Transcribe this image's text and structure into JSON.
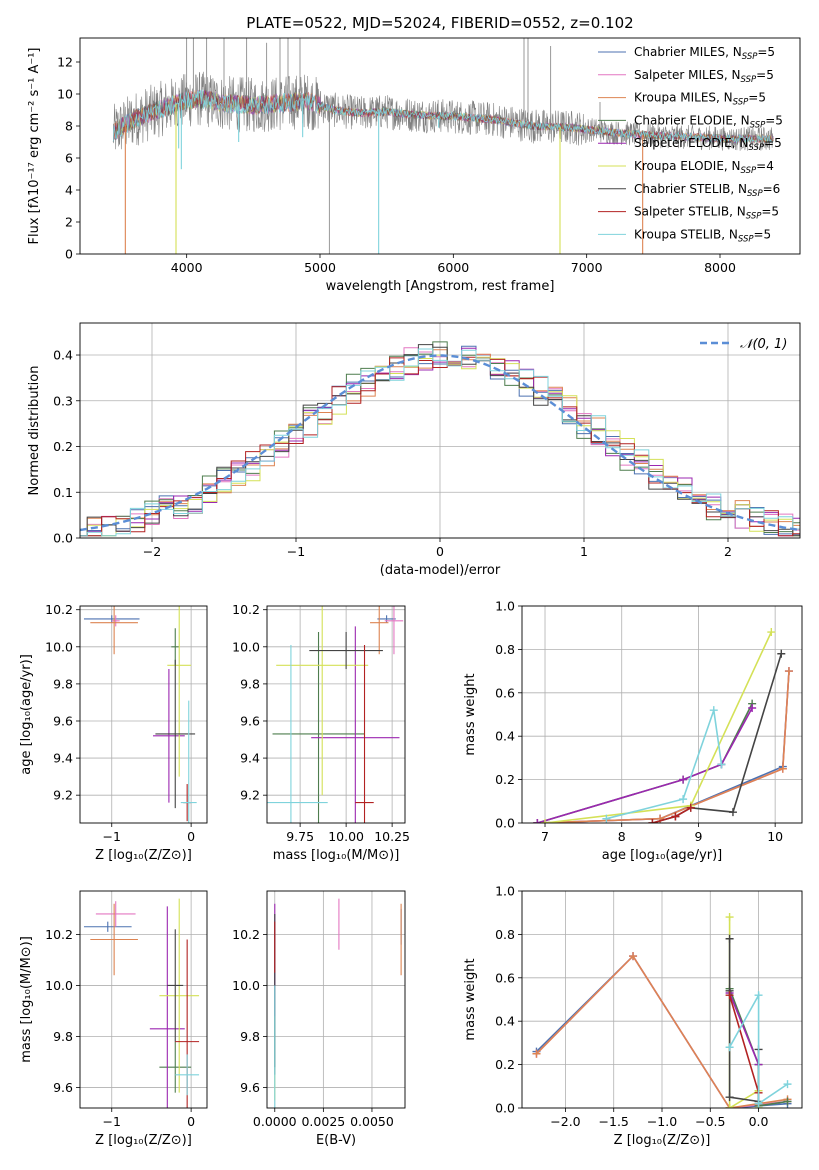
{
  "figure": {
    "title": "PLATE=0522, MJD=52024, FIBERID=0552, z=0.102"
  },
  "colors": {
    "chabrier_miles": "#4c72b0",
    "salpeter_miles": "#e377c2",
    "kroupa_miles": "#dd8452",
    "chabrier_elodie": "#4e7d4e",
    "salpeter_elodie": "#9b27b0",
    "kroupa_elodie": "#d4e157",
    "chabrier_stelib": "#444444",
    "salpeter_stelib": "#b22222",
    "kroupa_stelib": "#7fd3dc",
    "data": "#808080",
    "normal": "#5b8ed6"
  },
  "chart_data": [
    {
      "id": "spectrum",
      "type": "line",
      "xlabel": "wavelength [Angstrom, rest frame]",
      "ylabel": "Flux [fλ10⁻¹⁷ erg cm⁻² s⁻¹ A⁻¹]",
      "xlim": [
        3200,
        8600
      ],
      "ylim": [
        0,
        13.5
      ],
      "xticks": [
        4000,
        5000,
        6000,
        7000,
        8000
      ],
      "yticks": [
        0,
        2,
        4,
        6,
        8,
        10,
        12
      ],
      "legend_position": "top-right",
      "legend": [
        {
          "label": "Chabrier MILES, N",
          "sub": "SSP",
          "suffix": "=5",
          "color_key": "chabrier_miles"
        },
        {
          "label": "Salpeter MILES, N",
          "sub": "SSP",
          "suffix": "=5",
          "color_key": "salpeter_miles"
        },
        {
          "label": "Kroupa MILES, N",
          "sub": "SSP",
          "suffix": "=5",
          "color_key": "kroupa_miles"
        },
        {
          "label": "Chabrier ELODIE, N",
          "sub": "SSP",
          "suffix": "=5",
          "color_key": "chabrier_elodie"
        },
        {
          "label": "Salpeter ELODIE, N",
          "sub": "SSP",
          "suffix": "=5",
          "color_key": "salpeter_elodie"
        },
        {
          "label": "Kroupa ELODIE, N",
          "sub": "SSP",
          "suffix": "=4",
          "color_key": "kroupa_elodie"
        },
        {
          "label": "Chabrier STELIB, N",
          "sub": "SSP",
          "suffix": "=6",
          "color_key": "chabrier_stelib"
        },
        {
          "label": "Salpeter STELIB, N",
          "sub": "SSP",
          "suffix": "=5",
          "color_key": "salpeter_stelib"
        },
        {
          "label": "Kroupa STELIB, N",
          "sub": "SSP",
          "suffix": "=5",
          "color_key": "kroupa_stelib"
        }
      ],
      "model_continuum": [
        [
          3450,
          7.6
        ],
        [
          3600,
          8.4
        ],
        [
          3750,
          8.9
        ],
        [
          3850,
          9.2
        ],
        [
          4000,
          9.6
        ],
        [
          4100,
          9.7
        ],
        [
          4300,
          9.4
        ],
        [
          4500,
          9.3
        ],
        [
          4700,
          9.4
        ],
        [
          4900,
          9.6
        ],
        [
          5100,
          9.0
        ],
        [
          5300,
          8.8
        ],
        [
          5500,
          8.9
        ],
        [
          5700,
          8.7
        ],
        [
          6000,
          8.6
        ],
        [
          6300,
          8.4
        ],
        [
          6600,
          8.0
        ],
        [
          6900,
          7.9
        ],
        [
          7200,
          7.6
        ],
        [
          7500,
          7.4
        ],
        [
          7800,
          7.3
        ],
        [
          8100,
          7.2
        ],
        [
          8400,
          7.2
        ]
      ],
      "data_noise_amplitude": 1.1,
      "data_spikes": [
        {
          "x": 4000,
          "y": 13.5
        },
        {
          "x": 4050,
          "y": 13.5
        },
        {
          "x": 4150,
          "y": 13.5
        },
        {
          "x": 4280,
          "y": 13.5
        },
        {
          "x": 4450,
          "y": 13.5
        },
        {
          "x": 4600,
          "y": 13.2
        },
        {
          "x": 4700,
          "y": 13.5
        },
        {
          "x": 4760,
          "y": 13.5
        },
        {
          "x": 4850,
          "y": 13.5
        },
        {
          "x": 5070,
          "y": 0
        },
        {
          "x": 6530,
          "y": 13.5
        },
        {
          "x": 6560,
          "y": 13.5
        },
        {
          "x": 6730,
          "y": 13.0
        },
        {
          "x": 7100,
          "y": 9.5
        }
      ],
      "model_drops": [
        {
          "x": 3540,
          "y": 0,
          "color_key": "kroupa_miles"
        },
        {
          "x": 3920,
          "y": 0,
          "color_key": "kroupa_elodie"
        },
        {
          "x": 3960,
          "y": 5.3,
          "color_key": "kroupa_stelib"
        },
        {
          "x": 5440,
          "y": 0,
          "color_key": "kroupa_stelib"
        },
        {
          "x": 6800,
          "y": 0,
          "color_key": "kroupa_elodie"
        },
        {
          "x": 7420,
          "y": 0,
          "color_key": "kroupa_miles"
        },
        {
          "x": 4390,
          "y": 7.0,
          "color_key": "kroupa_stelib"
        },
        {
          "x": 4870,
          "y": 7.3,
          "color_key": "kroupa_stelib"
        },
        {
          "x": 5890,
          "y": 7.9,
          "color_key": "kroupa_stelib"
        },
        {
          "x": 3940,
          "y": 6.6,
          "color_key": "kroupa_stelib"
        }
      ]
    },
    {
      "id": "residuals",
      "type": "histogram",
      "xlabel": "(data-model)/error",
      "ylabel": "Normed distribution",
      "xlim": [
        -2.5,
        2.5
      ],
      "ylim": [
        0,
        0.47
      ],
      "xticks": [
        -2,
        -1,
        0,
        1,
        2
      ],
      "yticks": [
        0.0,
        0.1,
        0.2,
        0.3,
        0.4
      ],
      "bin_width": 0.1,
      "legend_position": "top-right",
      "legend_label": "𝒩(0, 1)",
      "normal_curve": {
        "mean": 0,
        "sigma": 1
      },
      "scatter_amplitude": 0.03
    },
    {
      "id": "Z_vs_age",
      "type": "errorbar",
      "xlabel": "Z [log₁₀(Z/Z⊙)]",
      "ylabel": "age  [log₁₀(age/yr)]",
      "xlim": [
        -1.4,
        0.2
      ],
      "ylim": [
        9.05,
        10.22
      ],
      "xticks": [
        -1,
        0
      ],
      "yticks": [
        9.2,
        9.4,
        9.6,
        9.8,
        10.0,
        10.2
      ],
      "points": [
        {
          "color_key": "chabrier_miles",
          "x": -1.0,
          "xerr": 0.35,
          "y": 10.15,
          "yerr": 0.02
        },
        {
          "color_key": "salpeter_miles",
          "x": -0.95,
          "xerr": 0.05,
          "y": 10.14,
          "yerr": 0.03
        },
        {
          "color_key": "kroupa_miles",
          "x": -0.97,
          "xerr": 0.3,
          "y": 10.13,
          "yerr": 0.17
        },
        {
          "color_key": "chabrier_elodie",
          "x": -0.2,
          "xerr": 0.05,
          "y": 10.0,
          "yerr": 0.1
        },
        {
          "color_key": "salpeter_elodie",
          "x": -0.28,
          "xerr": 0.2,
          "y": 9.52,
          "yerr": 0.36
        },
        {
          "color_key": "kroupa_elodie",
          "x": -0.15,
          "xerr": 0.15,
          "y": 9.9,
          "yerr": 0.6
        },
        {
          "color_key": "chabrier_stelib",
          "x": -0.2,
          "xerr": 0.25,
          "y": 9.53,
          "yerr": 0.4
        },
        {
          "color_key": "salpeter_stelib",
          "x": -0.05,
          "xerr": 0.05,
          "y": 9.16,
          "yerr": 0.1
        },
        {
          "color_key": "kroupa_stelib",
          "x": -0.03,
          "xerr": 0.1,
          "y": 9.16,
          "yerr": 0.55
        }
      ]
    },
    {
      "id": "mass_vs_age",
      "type": "errorbar",
      "xlabel": "mass [log₁₀(M/M⊙)]",
      "ylabel": "",
      "xlim": [
        9.57,
        10.32
      ],
      "ylim": [
        9.05,
        10.22
      ],
      "xticks": [
        9.75,
        10.0,
        10.25
      ],
      "xticklabels": [
        "9.75",
        "10.00",
        "10.25"
      ],
      "yticks": [
        9.2,
        9.4,
        9.6,
        9.8,
        10.0,
        10.2
      ],
      "points": [
        {
          "color_key": "chabrier_miles",
          "x": 10.22,
          "xerr": 0.05,
          "y": 10.15,
          "yerr": 0.02
        },
        {
          "color_key": "salpeter_miles",
          "x": 10.26,
          "xerr": 0.05,
          "y": 10.14,
          "yerr": 0.18
        },
        {
          "color_key": "kroupa_miles",
          "x": 10.18,
          "xerr": 0.05,
          "y": 10.13,
          "yerr": 0.17
        },
        {
          "color_key": "chabrier_elodie",
          "x": 9.85,
          "xerr": 0.25,
          "y": 9.53,
          "yerr": 0.55
        },
        {
          "color_key": "salpeter_elodie",
          "x": 10.05,
          "xerr": 0.24,
          "y": 9.51,
          "yerr": 0.6
        },
        {
          "color_key": "kroupa_elodie",
          "x": 9.87,
          "xerr": 0.25,
          "y": 9.9,
          "yerr": 0.7
        },
        {
          "color_key": "chabrier_stelib",
          "x": 10.0,
          "xerr": 0.2,
          "y": 9.98,
          "yerr": 0.1
        },
        {
          "color_key": "salpeter_stelib",
          "x": 10.1,
          "xerr": 0.05,
          "y": 9.16,
          "yerr": 0.85
        },
        {
          "color_key": "kroupa_stelib",
          "x": 9.7,
          "xerr": 0.2,
          "y": 9.16,
          "yerr": 0.85
        }
      ]
    },
    {
      "id": "age_mass_weight",
      "type": "line",
      "xlabel": "age  [log₁₀(age/yr)]",
      "ylabel": "mass weight",
      "xlim": [
        6.7,
        10.35
      ],
      "ylim": [
        0,
        1.0
      ],
      "xticks": [
        7,
        8,
        9,
        10
      ],
      "yticks": [
        0.0,
        0.2,
        0.4,
        0.6,
        0.8,
        1.0
      ],
      "series": [
        {
          "color_key": "chabrier_miles",
          "x": [
            6.9,
            8.5,
            10.1,
            10.18
          ],
          "y": [
            0.0,
            0.02,
            0.26,
            0.7
          ]
        },
        {
          "color_key": "salpeter_miles",
          "x": [
            6.9,
            8.5,
            10.1,
            10.18
          ],
          "y": [
            0.0,
            0.02,
            0.25,
            0.7
          ]
        },
        {
          "color_key": "kroupa_miles",
          "x": [
            6.9,
            8.5,
            10.1,
            10.18
          ],
          "y": [
            0.0,
            0.02,
            0.25,
            0.7
          ]
        },
        {
          "color_key": "chabrier_elodie",
          "x": [
            6.9,
            8.8,
            9.3,
            9.7
          ],
          "y": [
            0.0,
            0.2,
            0.27,
            0.55
          ]
        },
        {
          "color_key": "salpeter_elodie",
          "x": [
            6.9,
            8.8,
            9.3,
            9.7
          ],
          "y": [
            0.0,
            0.2,
            0.27,
            0.53
          ]
        },
        {
          "color_key": "kroupa_elodie",
          "x": [
            7.0,
            8.9,
            9.95
          ],
          "y": [
            0.0,
            0.08,
            0.88
          ]
        },
        {
          "color_key": "chabrier_stelib",
          "x": [
            8.4,
            8.7,
            8.9,
            9.45,
            10.08
          ],
          "y": [
            0.0,
            0.03,
            0.07,
            0.05,
            0.78
          ]
        },
        {
          "color_key": "salpeter_stelib",
          "x": [
            8.4,
            8.7,
            8.9
          ],
          "y": [
            0.0,
            0.03,
            0.07
          ]
        },
        {
          "color_key": "kroupa_stelib",
          "x": [
            7.8,
            8.8,
            9.2,
            9.3
          ],
          "y": [
            0.02,
            0.11,
            0.52,
            0.27
          ]
        }
      ]
    },
    {
      "id": "Z_vs_mass",
      "type": "errorbar",
      "xlabel": "Z [log₁₀(Z/Z⊙)]",
      "ylabel": "mass [log₁₀(M/M⊙)]",
      "xlim": [
        -1.4,
        0.2
      ],
      "ylim": [
        9.52,
        10.37
      ],
      "xticks": [
        -1,
        0
      ],
      "yticks": [
        9.6,
        9.8,
        10.0,
        10.2
      ],
      "points": [
        {
          "color_key": "chabrier_miles",
          "x": -1.05,
          "xerr": 0.3,
          "y": 10.23,
          "yerr": 0.02
        },
        {
          "color_key": "salpeter_miles",
          "x": -0.95,
          "xerr": 0.25,
          "y": 10.28,
          "yerr": 0.05
        },
        {
          "color_key": "kroupa_miles",
          "x": -0.97,
          "xerr": 0.3,
          "y": 10.18,
          "yerr": 0.14
        },
        {
          "color_key": "chabrier_elodie",
          "x": -0.2,
          "xerr": 0.2,
          "y": 9.68,
          "yerr": 0.1
        },
        {
          "color_key": "salpeter_elodie",
          "x": -0.3,
          "xerr": 0.22,
          "y": 9.83,
          "yerr": 0.48
        },
        {
          "color_key": "kroupa_elodie",
          "x": -0.15,
          "xerr": 0.25,
          "y": 9.96,
          "yerr": 0.38
        },
        {
          "color_key": "chabrier_stelib",
          "x": -0.2,
          "xerr": 0.1,
          "y": 10.0,
          "yerr": 0.22
        },
        {
          "color_key": "salpeter_stelib",
          "x": -0.05,
          "xerr": 0.15,
          "y": 9.78,
          "yerr": 0.4
        },
        {
          "color_key": "kroupa_stelib",
          "x": -0.05,
          "xerr": 0.15,
          "y": 9.65,
          "yerr": 0.08
        }
      ]
    },
    {
      "id": "ebv_vs_mass",
      "type": "errorbar",
      "xlabel": "E(B-V)",
      "ylabel": "",
      "xlim": [
        -0.0004,
        0.0067
      ],
      "ylim": [
        9.52,
        10.37
      ],
      "xticks": [
        0.0,
        0.0025,
        0.005
      ],
      "xticklabels": [
        "0.0000",
        "0.0025",
        "0.0050"
      ],
      "yticks": [
        9.6,
        9.8,
        10.0,
        10.2
      ],
      "points": [
        {
          "color_key": "chabrier_miles",
          "x": 0.0065,
          "xerr": 0,
          "y": 10.23,
          "yerr": 0.07
        },
        {
          "color_key": "salpeter_miles",
          "x": 0.0033,
          "xerr": 0,
          "y": 10.24,
          "yerr": 0.1
        },
        {
          "color_key": "kroupa_miles",
          "x": 0.0065,
          "xerr": 0,
          "y": 10.18,
          "yerr": 0.14
        },
        {
          "color_key": "chabrier_elodie",
          "x": 0.0,
          "xerr": 0,
          "y": 9.95,
          "yerr": 0.3
        },
        {
          "color_key": "salpeter_elodie",
          "x": 0.0,
          "xerr": 0,
          "y": 10.1,
          "yerr": 0.22
        },
        {
          "color_key": "kroupa_elodie",
          "x": 0.0,
          "xerr": 0,
          "y": 9.6,
          "yerr": 0.05
        },
        {
          "color_key": "chabrier_stelib",
          "x": 0.0,
          "xerr": 0,
          "y": 9.98,
          "yerr": 0.3
        },
        {
          "color_key": "salpeter_stelib",
          "x": 0.0,
          "xerr": 0,
          "y": 10.15,
          "yerr": 0.1
        },
        {
          "color_key": "kroupa_stelib",
          "x": 0.0,
          "xerr": 0,
          "y": 9.7,
          "yerr": 0.3
        }
      ]
    },
    {
      "id": "Z_mass_weight",
      "type": "line",
      "xlabel": "Z [log₁₀(Z/Z⊙)]",
      "ylabel": "mass weight",
      "xlim": [
        -2.45,
        0.45
      ],
      "ylim": [
        0,
        1.0
      ],
      "xticks": [
        -2.0,
        -1.5,
        -1.0,
        -0.5,
        0.0
      ],
      "xticklabels": [
        "−2.0",
        "−1.5",
        "−1.0",
        "−0.5",
        "0.0"
      ],
      "yticks": [
        0.0,
        0.2,
        0.4,
        0.6,
        0.8,
        1.0
      ],
      "series": [
        {
          "color_key": "chabrier_miles",
          "x": [
            -2.3,
            -1.3,
            -0.3,
            0.3
          ],
          "y": [
            0.26,
            0.7,
            0.0,
            0.02
          ]
        },
        {
          "color_key": "salpeter_miles",
          "x": [
            -2.3,
            -1.3,
            -0.3,
            0.3
          ],
          "y": [
            0.25,
            0.7,
            0.0,
            0.03
          ]
        },
        {
          "color_key": "kroupa_miles",
          "x": [
            -2.3,
            -1.3,
            -0.3,
            0.3
          ],
          "y": [
            0.25,
            0.7,
            0.0,
            0.04
          ]
        },
        {
          "color_key": "chabrier_elodie",
          "x": [
            -0.3,
            0.0,
            0.0,
            0.3
          ],
          "y": [
            0.55,
            0.2,
            0.01,
            0.03
          ]
        },
        {
          "color_key": "salpeter_elodie",
          "x": [
            -0.3,
            0.0
          ],
          "y": [
            0.53,
            0.2
          ]
        },
        {
          "color_key": "kroupa_elodie",
          "x": [
            -0.3,
            -0.3,
            0.0,
            0.0
          ],
          "y": [
            0.88,
            0.0,
            0.08,
            0.0
          ]
        },
        {
          "color_key": "chabrier_stelib",
          "x": [
            -0.3,
            -0.3,
            -0.3,
            0.0,
            0.0
          ],
          "y": [
            0.78,
            0.54,
            0.05,
            0.03,
            0.27
          ]
        },
        {
          "color_key": "salpeter_stelib",
          "x": [
            -0.3,
            0.0
          ],
          "y": [
            0.52,
            0.07
          ]
        },
        {
          "color_key": "kroupa_stelib",
          "x": [
            -0.3,
            0.0,
            0.0,
            0.3
          ],
          "y": [
            0.28,
            0.52,
            0.02,
            0.11
          ]
        }
      ]
    }
  ]
}
